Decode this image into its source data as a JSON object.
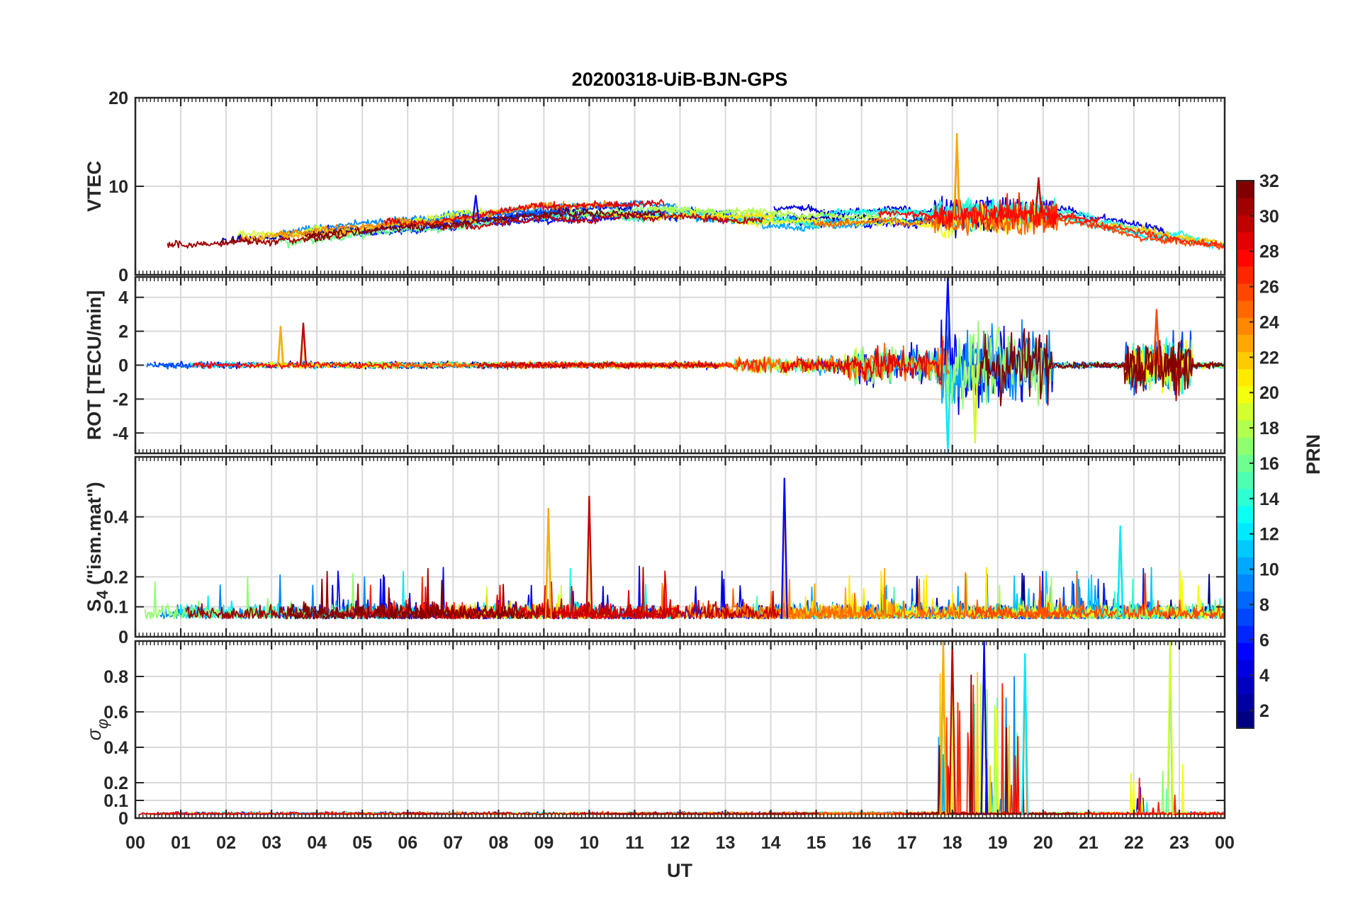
{
  "chart_data": {
    "type": "line",
    "title": "20200318-UiB-BJN-GPS",
    "xlabel": "UT",
    "x_tick_labels": [
      "00",
      "01",
      "02",
      "03",
      "04",
      "05",
      "06",
      "07",
      "08",
      "09",
      "10",
      "11",
      "12",
      "13",
      "14",
      "15",
      "16",
      "17",
      "18",
      "19",
      "20",
      "21",
      "22",
      "23",
      "00"
    ],
    "xlim": [
      0,
      24
    ],
    "grid": true,
    "colorbar": {
      "label": "PRN",
      "range": [
        1,
        32
      ],
      "ticks": [
        "2",
        "4",
        "6",
        "8",
        "10",
        "12",
        "14",
        "16",
        "18",
        "20",
        "22",
        "24",
        "26",
        "28",
        "30",
        "32"
      ],
      "colormap": "jet"
    },
    "panels": [
      {
        "id": "vtec",
        "ylabel": "VTEC",
        "ylim": [
          0,
          20
        ],
        "y_tick_labels": [
          "0",
          "10",
          "20"
        ],
        "typical_level": [
          {
            "x": 0,
            "y": 3.5
          },
          {
            "x": 3,
            "y": 4.0
          },
          {
            "x": 6,
            "y": 5.5
          },
          {
            "x": 9,
            "y": 7.0
          },
          {
            "x": 12,
            "y": 7.3
          },
          {
            "x": 15,
            "y": 6.5
          },
          {
            "x": 18,
            "y": 6.5
          },
          {
            "x": 20,
            "y": 7.0
          },
          {
            "x": 22,
            "y": 5.0
          },
          {
            "x": 24,
            "y": 3.5
          }
        ],
        "peaks": [
          {
            "x": 18.1,
            "y": 16
          },
          {
            "x": 19.9,
            "y": 11
          },
          {
            "x": 7.5,
            "y": 9
          }
        ]
      },
      {
        "id": "rot",
        "ylabel": "ROT [TECU/min]",
        "ylim": [
          -5.2,
          5.2
        ],
        "y_tick_labels": [
          "-4",
          "-2",
          "0",
          "2",
          "4"
        ],
        "typical_level": [
          {
            "x": 0,
            "y": 0
          },
          {
            "x": 24,
            "y": 0
          }
        ],
        "peaks": [
          {
            "x": 3.2,
            "y": 2.3
          },
          {
            "x": 3.7,
            "y": 2.5
          },
          {
            "x": 17.9,
            "y": 5.2
          },
          {
            "x": 17.9,
            "y": -5.2
          },
          {
            "x": 18.5,
            "y": -4.6
          },
          {
            "x": 22.5,
            "y": 3.3
          }
        ]
      },
      {
        "id": "s4",
        "ylabel": "S4 (\"ism.mat\")",
        "ylabel_main": "S",
        "ylabel_sub": "4",
        "ylabel_rest": " (\"ism.mat\")",
        "ylim": [
          0,
          0.6
        ],
        "y_tick_labels": [
          "0",
          "0.1",
          "0.2",
          "0.4"
        ],
        "typical_level": [
          {
            "x": 0,
            "y": 0.06
          },
          {
            "x": 24,
            "y": 0.06
          }
        ],
        "peaks": [
          {
            "x": 9.1,
            "y": 0.43
          },
          {
            "x": 10.0,
            "y": 0.47
          },
          {
            "x": 14.3,
            "y": 0.53
          },
          {
            "x": 21.7,
            "y": 0.37
          }
        ]
      },
      {
        "id": "sigma",
        "ylabel": "σφ",
        "ylabel_main": "σ",
        "ylabel_sub": "φ",
        "ylim": [
          0,
          1
        ],
        "y_tick_labels": [
          "0",
          "0.1",
          "0.2",
          "0.4",
          "0.6",
          "0.8"
        ],
        "typical_level": [
          {
            "x": 0,
            "y": 0.02
          },
          {
            "x": 24,
            "y": 0.02
          }
        ],
        "peaks": [
          {
            "x": 17.8,
            "y": 1.0
          },
          {
            "x": 18.0,
            "y": 1.0
          },
          {
            "x": 18.7,
            "y": 1.0
          },
          {
            "x": 19.6,
            "y": 0.93
          },
          {
            "x": 22.8,
            "y": 1.0
          }
        ]
      }
    ]
  }
}
